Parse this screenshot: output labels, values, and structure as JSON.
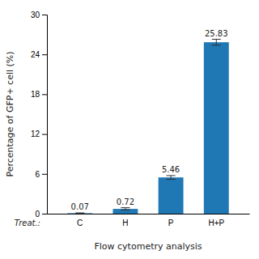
{
  "chart_data": {
    "type": "bar",
    "categories": [
      "C",
      "H",
      "P",
      "H+P"
    ],
    "values": [
      0.07,
      0.72,
      5.46,
      25.83
    ],
    "errors": [
      0.05,
      0.18,
      0.28,
      0.45
    ],
    "data_labels": true,
    "y_label": "Percentage of GFP+ cell (%)",
    "x_label": "Flow cytometry analysis",
    "annotations": [
      "Treat.:"
    ],
    "ylim": [
      0,
      30
    ],
    "yticks": [
      0,
      6,
      12,
      18,
      24,
      30
    ],
    "grid": false
  }
}
